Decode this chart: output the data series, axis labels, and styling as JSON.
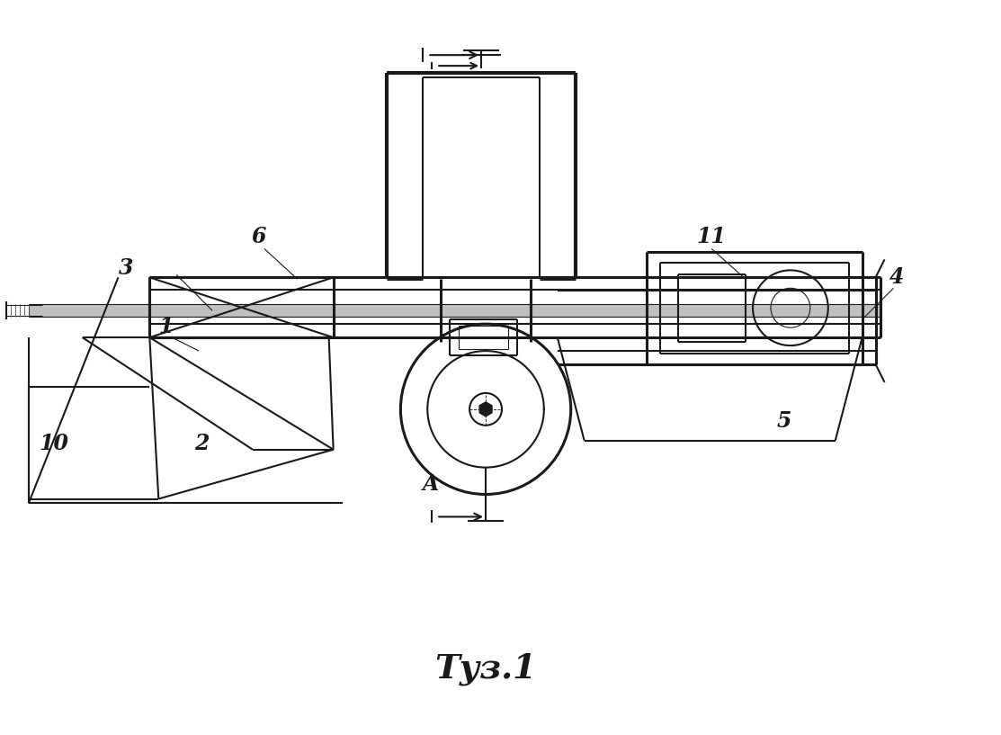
{
  "bg_color": "#ffffff",
  "line_color": "#1a1a1a",
  "fig_label": "Τуз.1",
  "lw_thin": 0.8,
  "lw_med": 1.5,
  "lw_thick": 2.2,
  "lw_xthick": 3.0
}
